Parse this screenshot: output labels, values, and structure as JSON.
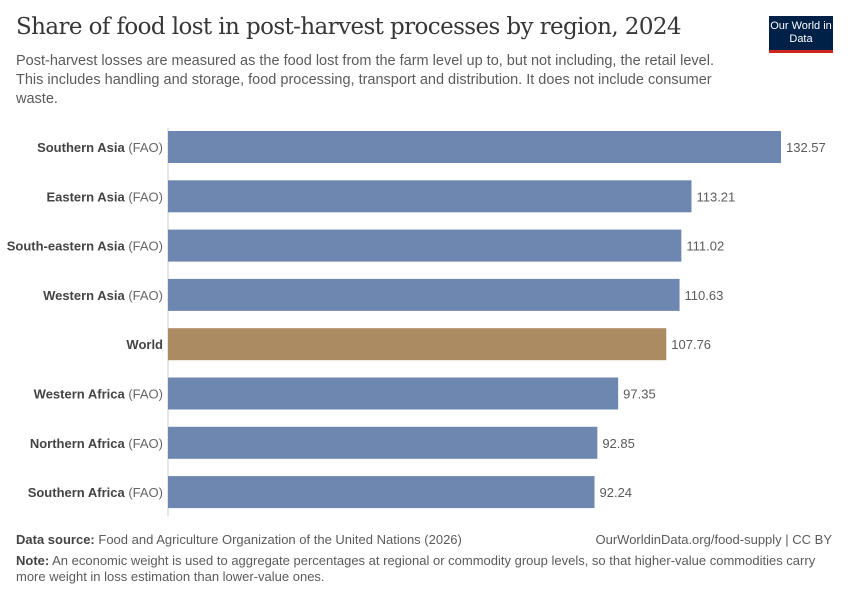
{
  "header": {
    "title": "Share of food lost in post-harvest processes by region, 2024",
    "subtitle": "Post-harvest losses are measured as the food lost from the farm level up to, but not including, the retail level. This includes handling and storage, food processing, transport and distribution. It does not include consumer waste.",
    "logo": "Our World in Data"
  },
  "footer": {
    "source_label": "Data source:",
    "source": "Food and Agriculture Organization of the United Nations (2026)",
    "url": "OurWorldinData.org/food-supply | CC BY",
    "note_label": "Note:",
    "note": "An economic weight is used to aggregate percentages at regional or commodity group levels, so that higher-value commodities carry more weight in loss estimation than lower-value ones."
  },
  "chart_data": {
    "type": "bar",
    "orientation": "horizontal",
    "categories": [
      "Southern Asia",
      "Eastern Asia",
      "South-eastern Asia",
      "Western Asia",
      "World",
      "Western Africa",
      "Northern Africa",
      "Southern Africa"
    ],
    "suffixes": [
      " (FAO)",
      " (FAO)",
      " (FAO)",
      " (FAO)",
      "",
      " (FAO)",
      " (FAO)",
      " (FAO)"
    ],
    "values": [
      132.57,
      113.21,
      111.02,
      110.63,
      107.76,
      97.35,
      92.85,
      92.24
    ],
    "colors": [
      "#6d87b0",
      "#6d87b0",
      "#6d87b0",
      "#6d87b0",
      "#ab8b62",
      "#6d87b0",
      "#6d87b0",
      "#6d87b0"
    ],
    "xlim": [
      0,
      132.57
    ],
    "grid": false
  }
}
